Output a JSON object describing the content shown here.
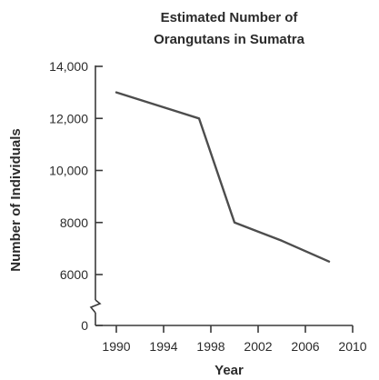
{
  "chart_data": {
    "type": "line",
    "title_lines": [
      "Estimated Number of",
      "Orangutans in Sumatra"
    ],
    "xlabel": "Year",
    "ylabel": "Number of Individuals",
    "xlim": [
      1989,
      2010
    ],
    "ylim": [
      0,
      14000
    ],
    "y_axis_break": true,
    "x_ticks": [
      1990,
      1994,
      1998,
      2002,
      2006,
      2010
    ],
    "x_tick_labels": [
      "1990",
      "1994",
      "1998",
      "2002",
      "2006",
      "2010"
    ],
    "y_ticks": [
      0,
      6000,
      8000,
      10000,
      12000,
      14000
    ],
    "y_tick_labels": [
      "0",
      "6000",
      "8000",
      "10,000",
      "12,000",
      "14,000"
    ],
    "grid": false,
    "line_color": "#4d4d4d",
    "series": [
      {
        "x": [
          1990,
          1997,
          2000,
          2004,
          2008
        ],
        "y": [
          13000,
          12000,
          8000,
          7300,
          6500
        ]
      }
    ]
  }
}
